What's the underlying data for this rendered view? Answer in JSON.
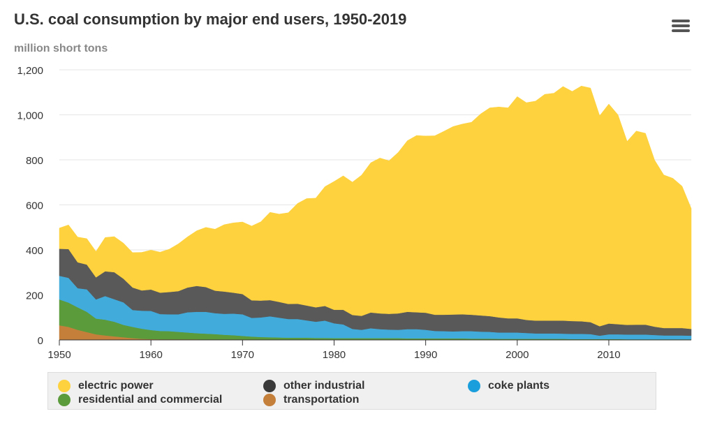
{
  "header": {
    "title": "U.S. coal consumption by major end users, 1950-2019",
    "unit_label": "million short tons"
  },
  "chart_data": {
    "type": "area",
    "stacked": true,
    "title": "U.S. coal consumption by major end users, 1950-2019",
    "ylabel": "million short tons",
    "xlabel": "",
    "xlim": [
      1950,
      2019
    ],
    "ylim": [
      0,
      1200
    ],
    "x_ticks": [
      "1950",
      "1960",
      "1970",
      "1980",
      "1990",
      "2000",
      "2010"
    ],
    "y_ticks": [
      "0",
      "200",
      "400",
      "600",
      "800",
      "1,000",
      "1,200"
    ],
    "grid": true,
    "legend_position": "bottom",
    "x": [
      1950,
      1951,
      1952,
      1953,
      1954,
      1955,
      1956,
      1957,
      1958,
      1959,
      1960,
      1961,
      1962,
      1963,
      1964,
      1965,
      1966,
      1967,
      1968,
      1969,
      1970,
      1971,
      1972,
      1973,
      1974,
      1975,
      1976,
      1977,
      1978,
      1979,
      1980,
      1981,
      1982,
      1983,
      1984,
      1985,
      1986,
      1987,
      1988,
      1989,
      1990,
      1991,
      1992,
      1993,
      1994,
      1995,
      1996,
      1997,
      1998,
      1999,
      2000,
      2001,
      2002,
      2003,
      2004,
      2005,
      2006,
      2007,
      2008,
      2009,
      2010,
      2011,
      2012,
      2013,
      2014,
      2015,
      2016,
      2017,
      2018,
      2019
    ],
    "series": [
      {
        "name": "transportation",
        "color": "#c47f3b",
        "values": [
          65,
          58,
          45,
          35,
          25,
          20,
          16,
          12,
          8,
          5,
          4,
          3,
          3,
          3,
          3,
          3,
          2,
          2,
          2,
          2,
          2,
          1,
          1,
          1,
          1,
          1,
          1,
          1,
          1,
          1,
          1,
          1,
          1,
          1,
          1,
          1,
          1,
          1,
          1,
          1,
          1,
          1,
          1,
          1,
          1,
          1,
          1,
          1,
          1,
          1,
          1,
          1,
          1,
          1,
          1,
          1,
          1,
          1,
          1,
          1,
          1,
          1,
          1,
          1,
          1,
          1,
          1,
          1,
          1,
          1
        ]
      },
      {
        "name": "residential and commercial",
        "color": "#5b9b3b",
        "values": [
          115,
          108,
          100,
          90,
          70,
          70,
          65,
          55,
          50,
          45,
          40,
          37,
          36,
          33,
          30,
          27,
          26,
          24,
          21,
          19,
          16,
          14,
          12,
          11,
          10,
          9,
          9,
          9,
          8,
          8,
          7,
          7,
          7,
          7,
          7,
          7,
          7,
          7,
          6,
          6,
          6,
          6,
          6,
          6,
          6,
          5,
          5,
          5,
          4,
          4,
          4,
          4,
          4,
          4,
          4,
          4,
          3,
          3,
          3,
          3,
          3,
          3,
          2,
          2,
          2,
          2,
          2,
          2,
          2,
          2
        ]
      },
      {
        "name": "coke plants",
        "color": "#41abdb",
        "values": [
          105,
          110,
          85,
          100,
          85,
          105,
          100,
          100,
          75,
          80,
          85,
          75,
          75,
          78,
          90,
          95,
          97,
          93,
          93,
          96,
          96,
          83,
          87,
          93,
          88,
          83,
          83,
          77,
          72,
          77,
          66,
          61,
          41,
          37,
          44,
          40,
          38,
          37,
          41,
          41,
          38,
          33,
          32,
          31,
          32,
          33,
          31,
          30,
          28,
          28,
          28,
          26,
          24,
          24,
          24,
          23,
          23,
          23,
          22,
          15,
          21,
          21,
          21,
          21,
          21,
          19,
          17,
          17,
          17,
          16
        ]
      },
      {
        "name": "other industrial",
        "color": "#595959",
        "values": [
          120,
          128,
          115,
          110,
          98,
          110,
          120,
          105,
          100,
          90,
          95,
          95,
          99,
          103,
          110,
          115,
          110,
          100,
          99,
          93,
          90,
          78,
          75,
          72,
          70,
          67,
          68,
          66,
          64,
          65,
          60,
          65,
          62,
          62,
          70,
          70,
          70,
          73,
          77,
          75,
          76,
          72,
          73,
          75,
          75,
          73,
          72,
          70,
          67,
          63,
          63,
          58,
          57,
          57,
          57,
          58,
          57,
          56,
          53,
          42,
          48,
          45,
          43,
          44,
          44,
          37,
          33,
          33,
          33,
          30
        ]
      },
      {
        "name": "electric power",
        "color": "#fdd23e",
        "values": [
          92,
          107,
          112,
          115,
          115,
          150,
          158,
          158,
          155,
          169,
          175,
          180,
          190,
          210,
          225,
          245,
          265,
          273,
          297,
          310,
          320,
          330,
          350,
          390,
          390,
          405,
          445,
          475,
          485,
          530,
          570,
          595,
          590,
          625,
          665,
          690,
          680,
          715,
          760,
          785,
          785,
          795,
          815,
          835,
          845,
          855,
          895,
          925,
          935,
          935,
          985,
          965,
          975,
          1005,
          1010,
          1040,
          1020,
          1045,
          1040,
          935,
          975,
          930,
          815,
          860,
          850,
          740,
          680,
          665,
          630,
          535
        ]
      }
    ]
  },
  "legend": {
    "items": [
      {
        "label": "electric power",
        "color": "#fdd23e"
      },
      {
        "label": "other industrial",
        "color": "#3a3a3a"
      },
      {
        "label": "coke plants",
        "color": "#1b9fdc"
      },
      {
        "label": "residential and commercial",
        "color": "#5b9b3b"
      },
      {
        "label": "transportation",
        "color": "#c47f3b"
      }
    ]
  },
  "toolbar": {
    "menu_icon": "hamburger-menu-icon"
  }
}
